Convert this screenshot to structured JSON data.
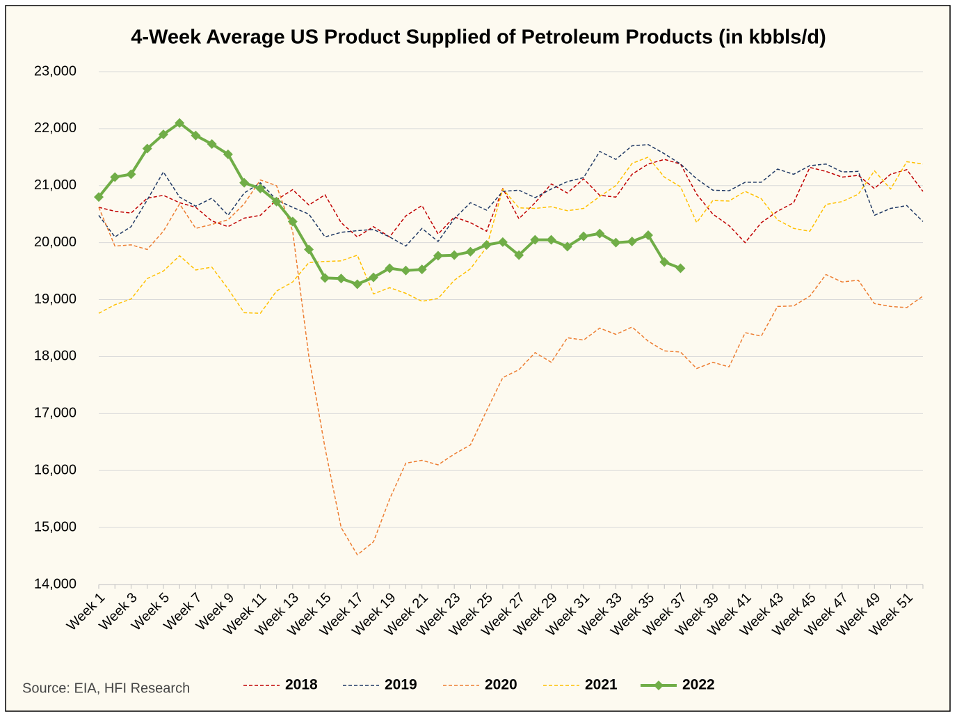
{
  "chart_data": {
    "type": "line",
    "title": "4-Week Average US Product Supplied of Petroleum Products (in kbbls/d)",
    "source": "Source: EIA, HFI Research",
    "categories": [
      "Week 1",
      null,
      "Week 3",
      null,
      "Week 5",
      null,
      "Week 7",
      null,
      "Week 9",
      null,
      "Week 11",
      null,
      "Week 13",
      null,
      "Week 15",
      null,
      "Week 17",
      null,
      "Week 19",
      null,
      "Week 21",
      null,
      "Week 23",
      null,
      "Week 25",
      null,
      "Week 27",
      null,
      "Week 29",
      null,
      "Week 31",
      null,
      "Week 33",
      null,
      "Week 35",
      null,
      "Week 37",
      null,
      "Week 39",
      null,
      "Week 41",
      null,
      "Week 43",
      null,
      "Week 45",
      null,
      "Week 47",
      null,
      "Week 49",
      null,
      "Week 51",
      null
    ],
    "ylim": [
      14000,
      23000
    ],
    "yticks": [
      {
        "value": 14000,
        "label": "14,000"
      },
      {
        "value": 15000,
        "label": "15,000"
      },
      {
        "value": 16000,
        "label": "16,000"
      },
      {
        "value": 17000,
        "label": "17,000"
      },
      {
        "value": 18000,
        "label": "18,000"
      },
      {
        "value": 19000,
        "label": "19,000"
      },
      {
        "value": 20000,
        "label": "20,000"
      },
      {
        "value": 21000,
        "label": "21,000"
      },
      {
        "value": 22000,
        "label": "22,000"
      },
      {
        "value": 23000,
        "label": "23,000"
      }
    ],
    "grid": true,
    "legend": "bottom",
    "series": [
      {
        "name": "2018",
        "color": "#c00000",
        "dashed": true,
        "values": [
          20620,
          20550,
          20520,
          20780,
          20830,
          20700,
          20620,
          20380,
          20280,
          20430,
          20480,
          20750,
          20930,
          20660,
          20840,
          20350,
          20100,
          20280,
          20100,
          20470,
          20650,
          20150,
          20450,
          20350,
          20200,
          20950,
          20420,
          20700,
          21030,
          20870,
          21120,
          20830,
          20800,
          21200,
          21380,
          21460,
          21380,
          20850,
          20500,
          20300,
          20000,
          20350,
          20550,
          20700,
          21320,
          21250,
          21150,
          21180,
          20950,
          21200,
          21280,
          20900
        ]
      },
      {
        "name": "2019",
        "color": "#1f3864",
        "dashed": true,
        "values": [
          20480,
          20100,
          20280,
          20750,
          21240,
          20800,
          20640,
          20780,
          20480,
          20870,
          21050,
          20750,
          20620,
          20500,
          20100,
          20180,
          20210,
          20230,
          20100,
          19940,
          20250,
          20020,
          20420,
          20700,
          20570,
          20900,
          20920,
          20790,
          20940,
          21070,
          21140,
          21600,
          21460,
          21700,
          21720,
          21560,
          21380,
          21120,
          20920,
          20910,
          21060,
          21060,
          21290,
          21200,
          21350,
          21380,
          21240,
          21250,
          20480,
          20600,
          20650,
          20370
        ]
      },
      {
        "name": "2020",
        "color": "#ed7d31",
        "dashed": true,
        "values": [
          20620,
          19940,
          19960,
          19880,
          20200,
          20680,
          20250,
          20320,
          20400,
          20680,
          21100,
          21000,
          20200,
          18000,
          16400,
          15000,
          14520,
          14750,
          15500,
          16130,
          16180,
          16100,
          16290,
          16450,
          17050,
          17630,
          17770,
          18070,
          17900,
          18330,
          18290,
          18500,
          18390,
          18520,
          18270,
          18100,
          18080,
          17790,
          17900,
          17820,
          18420,
          18360,
          18880,
          18890,
          19060,
          19440,
          19310,
          19340,
          18930,
          18880,
          18860,
          19060
        ]
      },
      {
        "name": "2021",
        "color": "#ffc000",
        "dashed": true,
        "values": [
          18760,
          18910,
          19010,
          19370,
          19500,
          19770,
          19520,
          19570,
          19190,
          18770,
          18760,
          19150,
          19310,
          19650,
          19670,
          19680,
          19780,
          19100,
          19210,
          19110,
          18970,
          19020,
          19340,
          19540,
          19920,
          20940,
          20610,
          20600,
          20630,
          20560,
          20600,
          20810,
          21000,
          21390,
          21500,
          21150,
          20980,
          20350,
          20740,
          20730,
          20900,
          20770,
          20400,
          20250,
          20200,
          20670,
          20720,
          20850,
          21260,
          20940,
          21420,
          21380
        ]
      },
      {
        "name": "2022",
        "color": "#70ad47",
        "dashed": false,
        "marker": "diamond",
        "values": [
          20800,
          21150,
          21200,
          21650,
          21900,
          22100,
          21880,
          21730,
          21550,
          21050,
          20950,
          20720,
          20370,
          19880,
          19380,
          19370,
          19270,
          19390,
          19550,
          19510,
          19530,
          19770,
          19780,
          19840,
          19960,
          20010,
          19780,
          20050,
          20050,
          19930,
          20110,
          20160,
          20000,
          20020,
          20130,
          19660,
          19550,
          null,
          null,
          null,
          null,
          null,
          null,
          null,
          null,
          null,
          null,
          null,
          null,
          null,
          null,
          null
        ]
      }
    ]
  }
}
